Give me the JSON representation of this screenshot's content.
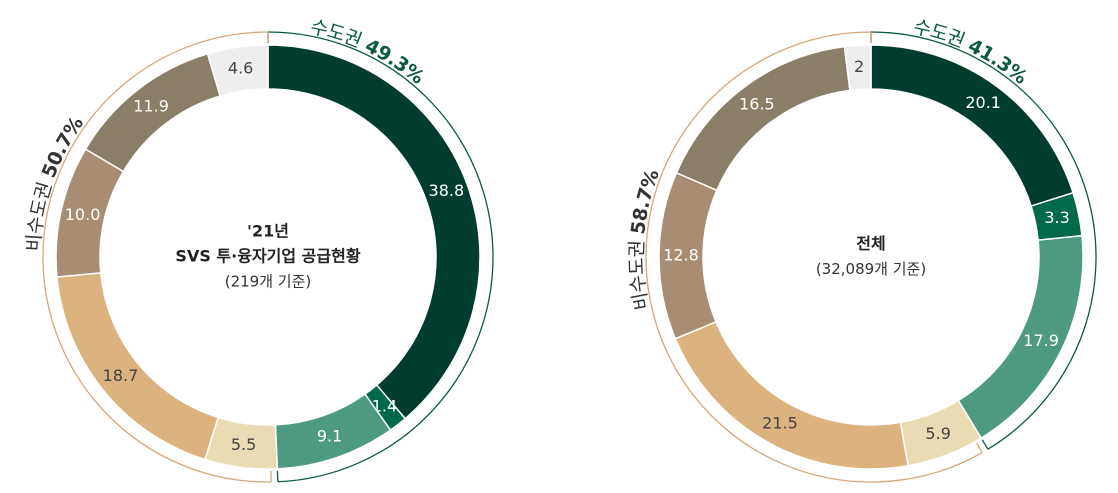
{
  "chart_data": [
    {
      "type": "pie",
      "title_lines": [
        "'21년",
        "SVS 투·융자기업 공급현황"
      ],
      "note": "(219개 기준)",
      "values": [
        38.8,
        1.4,
        9.1,
        5.5,
        18.7,
        10.0,
        11.9,
        4.6
      ],
      "value_labels": [
        "38.8",
        "1.4",
        "9.1",
        "5.5",
        "18.7",
        "10.0",
        "11.9",
        "4.6"
      ],
      "colors": [
        "#003d2f",
        "#00694a",
        "#4d9a80",
        "#e9dbb3",
        "#dcb27e",
        "#a88d72",
        "#8a7e69",
        "#eeeeee"
      ],
      "regions": [
        {
          "name": "수도권",
          "value": 49.3,
          "value_label": "49.3%",
          "color": "#0b5a3f"
        },
        {
          "name": "비수도권",
          "value": 50.7,
          "value_label": "50.7%",
          "color": "#d4a878"
        }
      ]
    },
    {
      "type": "pie",
      "title_lines": [
        "전체"
      ],
      "note": "(32,089개 기준)",
      "values": [
        20.1,
        3.3,
        17.9,
        5.9,
        21.5,
        12.8,
        16.5,
        2
      ],
      "value_labels": [
        "20.1",
        "3.3",
        "17.9",
        "5.9",
        "21.5",
        "12.8",
        "16.5",
        "2"
      ],
      "colors": [
        "#003d2f",
        "#00694a",
        "#4d9a80",
        "#e9dbb3",
        "#dcb27e",
        "#a88d72",
        "#8a7e69",
        "#eeeeee"
      ],
      "regions": [
        {
          "name": "수도권",
          "value": 41.3,
          "value_label": "41.3%",
          "color": "#0b5a3f"
        },
        {
          "name": "비수도권",
          "value": 58.7,
          "value_label": "58.7%",
          "color": "#d4a878"
        }
      ]
    }
  ]
}
